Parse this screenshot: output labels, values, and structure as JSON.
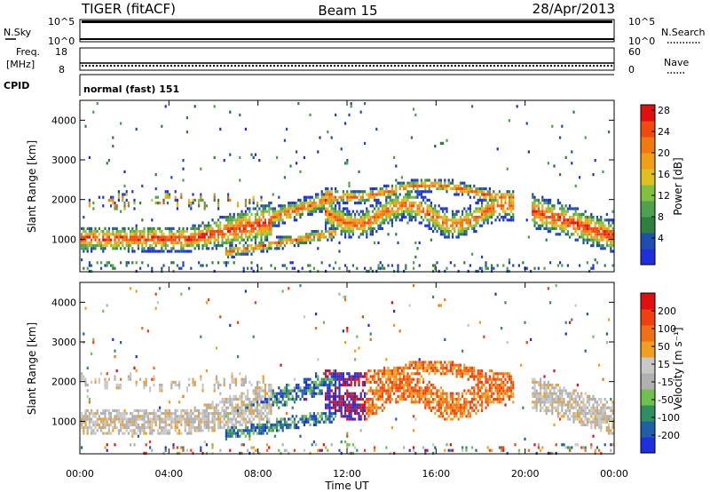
{
  "header": {
    "radar": "TIGER (fitACF)",
    "beam": "Beam 15",
    "date": "28/Apr/2013"
  },
  "top_panels": {
    "nsky_label": "N.Sky",
    "nsky_ticks": [
      "10^5",
      "10^0"
    ],
    "nsearch_label": "N.Search",
    "nsearch_ticks": [
      "10^5",
      "10^0"
    ],
    "freq_label": "Freq.",
    "freq_unit": "[MHz]",
    "freq_ticks": [
      "18",
      "8"
    ],
    "nave_label": "Nave",
    "nave_ticks": [
      "60",
      "0"
    ],
    "cpid_label": "CPID",
    "cpid_text": "normal (fast) 151"
  },
  "colors": {
    "power_scale": [
      "#1f2fe0",
      "#1e4fb0",
      "#2f7f3f",
      "#4fa04f",
      "#7fc040",
      "#e0c020",
      "#f0a018",
      "#f07a10",
      "#f04a10",
      "#e01010"
    ],
    "velocity_scale": [
      "#1f2fe0",
      "#1e5fa8",
      "#2f8f5f",
      "#6fc04f",
      "#b0b0b0",
      "#c8c8c8",
      "#f0a020",
      "#f07018",
      "#f04010",
      "#e01010"
    ]
  },
  "chart_data": [
    {
      "type": "heatmap",
      "panel": "power",
      "xlabel": "",
      "ylabel": "Slant Range [km]",
      "y_ticks": [
        "1000",
        "2000",
        "3000",
        "4000"
      ],
      "ylim": [
        180,
        4500
      ],
      "xlim": [
        "00:00",
        "24:00"
      ],
      "colorbar_label": "Power [dB]",
      "colorbar_ticks": [
        "4",
        "8",
        "12",
        "16",
        "20",
        "24",
        "28"
      ],
      "features": [
        {
          "name": "morning echo band",
          "x": [
            "00:00",
            "08:30"
          ],
          "y": [
            800,
            1700
          ],
          "value": "up to 28 dB"
        },
        {
          "name": "ascending band",
          "x": [
            "06:30",
            "11:00"
          ],
          "y": [
            500,
            2200
          ]
        },
        {
          "name": "midday patches",
          "x": [
            "11:00",
            "19:30"
          ],
          "y": [
            1100,
            2600
          ]
        },
        {
          "name": "evening band",
          "x": [
            "20:30",
            "24:00"
          ],
          "y": [
            900,
            2200
          ]
        }
      ]
    },
    {
      "type": "heatmap",
      "panel": "velocity",
      "xlabel": "Time UT",
      "ylabel": "Slant Range [km]",
      "x_ticks": [
        "00:00",
        "04:00",
        "08:00",
        "12:00",
        "16:00",
        "20:00",
        "00:00"
      ],
      "y_ticks": [
        "1000",
        "2000",
        "3000",
        "4000"
      ],
      "ylim": [
        180,
        4500
      ],
      "colorbar_label": "Velocity [m s⁻¹]",
      "colorbar_ticks": [
        "200",
        "100",
        "50",
        "15",
        "-15",
        "-50",
        "-100",
        "-200"
      ],
      "features": [
        {
          "name": "morning ground scatter",
          "x": [
            "00:00",
            "08:30"
          ],
          "y": [
            800,
            1900
          ],
          "value": "approx -15 to 15"
        },
        {
          "name": "positive velocity region",
          "x": [
            "08:00",
            "12:30"
          ],
          "y": [
            500,
            1700
          ],
          "value": "50 to 200"
        },
        {
          "name": "negative velocity region",
          "x": [
            "12:00",
            "19:30"
          ],
          "y": [
            1000,
            2000
          ],
          "value": "-50 to -200"
        },
        {
          "name": "evening ground scatter",
          "x": [
            "20:30",
            "24:00"
          ],
          "y": [
            1000,
            2500
          ],
          "value": "approx -15 to 15"
        }
      ]
    }
  ]
}
